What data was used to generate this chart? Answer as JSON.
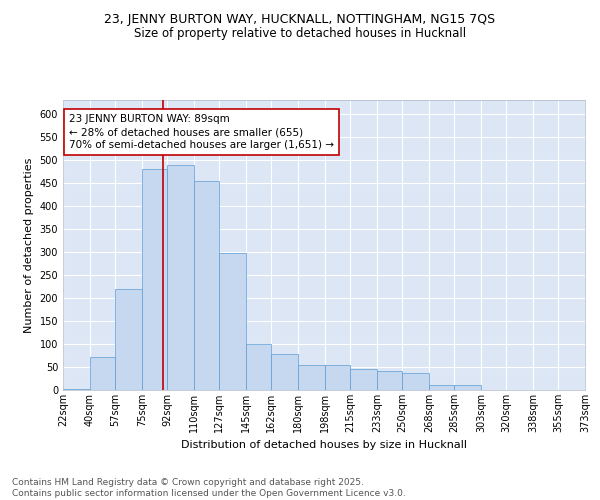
{
  "title": "23, JENNY BURTON WAY, HUCKNALL, NOTTINGHAM, NG15 7QS",
  "subtitle": "Size of property relative to detached houses in Hucknall",
  "xlabel": "Distribution of detached houses by size in Hucknall",
  "ylabel": "Number of detached properties",
  "bin_labels": [
    "22sqm",
    "40sqm",
    "57sqm",
    "75sqm",
    "92sqm",
    "110sqm",
    "127sqm",
    "145sqm",
    "162sqm",
    "180sqm",
    "198sqm",
    "215sqm",
    "233sqm",
    "250sqm",
    "268sqm",
    "285sqm",
    "303sqm",
    "320sqm",
    "338sqm",
    "355sqm",
    "373sqm"
  ],
  "bin_edges": [
    22,
    40,
    57,
    75,
    92,
    110,
    127,
    145,
    162,
    180,
    198,
    215,
    233,
    250,
    268,
    285,
    303,
    320,
    338,
    355,
    373
  ],
  "bar_values": [
    3,
    72,
    220,
    480,
    488,
    455,
    297,
    100,
    78,
    55,
    55,
    45,
    42,
    38,
    11,
    11,
    0,
    0,
    0,
    0
  ],
  "bar_color": "#c5d8f0",
  "bar_edge_color": "#5b9bd5",
  "vline_x": 89,
  "vline_color": "#c00000",
  "annotation_line1": "23 JENNY BURTON WAY: 89sqm",
  "annotation_line2": "← 28% of detached houses are smaller (655)",
  "annotation_line3": "70% of semi-detached houses are larger (1,651) →",
  "annotation_box_color": "#ffffff",
  "annotation_box_edge": "#c00000",
  "ylim": [
    0,
    630
  ],
  "yticks": [
    0,
    50,
    100,
    150,
    200,
    250,
    300,
    350,
    400,
    450,
    500,
    550,
    600
  ],
  "bg_color": "#dce6f5",
  "grid_color": "#ffffff",
  "footer_line1": "Contains HM Land Registry data © Crown copyright and database right 2025.",
  "footer_line2": "Contains public sector information licensed under the Open Government Licence v3.0.",
  "title_fontsize": 9,
  "subtitle_fontsize": 8.5,
  "axis_label_fontsize": 8,
  "tick_fontsize": 7,
  "annotation_fontsize": 7.5,
  "footer_fontsize": 6.5
}
